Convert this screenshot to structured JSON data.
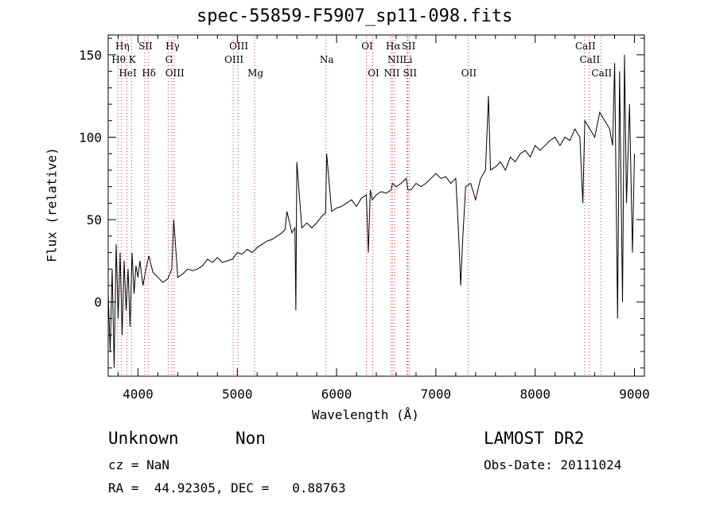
{
  "chart_data": {
    "type": "line",
    "title": "spec-55859-F5907_sp11-098.fits",
    "xlabel": "Wavelength (Å)",
    "ylabel": "Flux (relative)",
    "xlim": [
      3700,
      9100
    ],
    "ylim": [
      -45,
      162
    ],
    "xticks": [
      4000,
      5000,
      6000,
      7000,
      8000,
      9000
    ],
    "yticks": [
      0,
      50,
      100,
      150
    ],
    "grid": false,
    "series": [
      {
        "x": [
          3700,
          3720,
          3740,
          3760,
          3780,
          3800,
          3820,
          3840,
          3860,
          3880,
          3900,
          3920,
          3940,
          3960,
          3980,
          4000,
          4020,
          4050,
          4080,
          4110,
          4150,
          4200,
          4250,
          4300,
          4340,
          4360,
          4400,
          4450,
          4500,
          4550,
          4600,
          4650,
          4700,
          4750,
          4800,
          4850,
          4900,
          4950,
          5000,
          5050,
          5100,
          5150,
          5200,
          5250,
          5300,
          5350,
          5400,
          5450,
          5480,
          5500,
          5550,
          5580,
          5590,
          5600,
          5650,
          5700,
          5750,
          5800,
          5850,
          5890,
          5900,
          5950,
          6000,
          6050,
          6100,
          6150,
          6200,
          6250,
          6300,
          6320,
          6340,
          6360,
          6400,
          6450,
          6500,
          6550,
          6563,
          6600,
          6650,
          6700,
          6720,
          6750,
          6800,
          6850,
          6900,
          6950,
          7000,
          7050,
          7100,
          7150,
          7200,
          7230,
          7250,
          7270,
          7300,
          7350,
          7400,
          7450,
          7500,
          7530,
          7550,
          7600,
          7650,
          7700,
          7750,
          7800,
          7850,
          7900,
          7950,
          8000,
          8050,
          8100,
          8150,
          8200,
          8250,
          8300,
          8350,
          8400,
          8450,
          8480,
          8500,
          8550,
          8600,
          8650,
          8700,
          8750,
          8780,
          8800,
          8830,
          8850,
          8880,
          8900,
          8920,
          8950,
          8980,
          9000
        ],
        "y": [
          5,
          -30,
          20,
          -40,
          35,
          -10,
          30,
          -20,
          25,
          -5,
          20,
          -15,
          30,
          5,
          22,
          15,
          25,
          10,
          20,
          28,
          18,
          15,
          12,
          14,
          20,
          50,
          15,
          17,
          20,
          19,
          20,
          22,
          26,
          24,
          27,
          24,
          25,
          26,
          30,
          29,
          32,
          30,
          33,
          35,
          37,
          38,
          40,
          42,
          44,
          55,
          42,
          45,
          -5,
          85,
          45,
          48,
          45,
          48,
          52,
          54,
          90,
          55,
          57,
          58,
          60,
          62,
          58,
          63,
          65,
          30,
          68,
          62,
          65,
          67,
          66,
          68,
          72,
          70,
          72,
          75,
          68,
          68,
          72,
          70,
          72,
          75,
          78,
          75,
          76,
          72,
          75,
          40,
          10,
          38,
          70,
          72,
          62,
          75,
          80,
          125,
          80,
          82,
          85,
          80,
          88,
          85,
          90,
          92,
          88,
          95,
          92,
          95,
          98,
          100,
          95,
          100,
          98,
          105,
          100,
          60,
          110,
          105,
          100,
          115,
          110,
          105,
          95,
          145,
          -10,
          140,
          0,
          150,
          60,
          120,
          30,
          90
        ]
      }
    ],
    "spectral_lines": [
      {
        "label": "Hη",
        "wavelength": 3835,
        "row": 1
      },
      {
        "label": "Hθ",
        "wavelength": 3797,
        "row": 2
      },
      {
        "label": "K",
        "wavelength": 3934,
        "row": 2
      },
      {
        "label": "HeI",
        "wavelength": 3889,
        "row": 3
      },
      {
        "label": "SII",
        "wavelength": 4068,
        "row": 1
      },
      {
        "label": "Hδ",
        "wavelength": 4102,
        "row": 3
      },
      {
        "label": "Hγ",
        "wavelength": 4340,
        "row": 1
      },
      {
        "label": "G",
        "wavelength": 4304,
        "row": 2
      },
      {
        "label": "OIII",
        "wavelength": 4363,
        "row": 3
      },
      {
        "label": "OIII",
        "wavelength": 5007,
        "row": 1
      },
      {
        "label": "OIII",
        "wavelength": 4959,
        "row": 2
      },
      {
        "label": "Mg",
        "wavelength": 5175,
        "row": 3
      },
      {
        "label": "Na",
        "wavelength": 5893,
        "row": 2
      },
      {
        "label": "OI",
        "wavelength": 6300,
        "row": 1
      },
      {
        "label": "OI",
        "wavelength": 6364,
        "row": 3
      },
      {
        "label": "Hα",
        "wavelength": 6563,
        "row": 1
      },
      {
        "label": "SII",
        "wavelength": 6717,
        "row": 1
      },
      {
        "label": "NII",
        "wavelength": 6584,
        "row": 2
      },
      {
        "label": "Li",
        "wavelength": 6708,
        "row": 2
      },
      {
        "label": "NII",
        "wavelength": 6548,
        "row": 3
      },
      {
        "label": "SII",
        "wavelength": 6731,
        "row": 3
      },
      {
        "label": "OII",
        "wavelength": 7325,
        "row": 3
      },
      {
        "label": "CaII",
        "wavelength": 8498,
        "row": 1
      },
      {
        "label": "CaII",
        "wavelength": 8542,
        "row": 2
      },
      {
        "label": "CaII",
        "wavelength": 8662,
        "row": 3
      }
    ]
  },
  "info": {
    "class": "Unknown",
    "subclass": "Non",
    "survey": "LAMOST DR2",
    "cz": "cz = NaN",
    "obs_date": "Obs-Date: 20111024",
    "radec": "RA =  44.92305, DEC =   0.88763"
  }
}
